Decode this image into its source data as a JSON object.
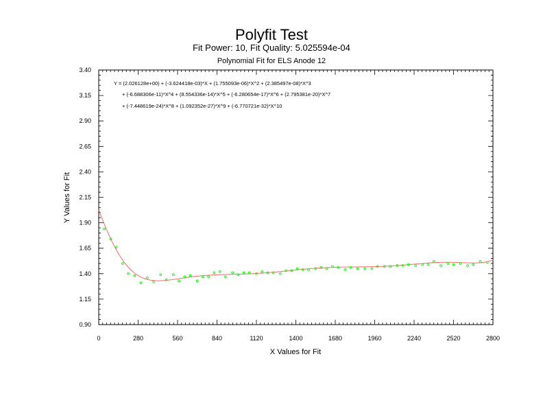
{
  "chart_data": {
    "type": "scatter",
    "title": "Polyfit Test",
    "subtitle": "Fit Power: 10, Fit Quality: 5.025594e-04",
    "subtitle2": "Polynomial Fit for ELS Anode 12",
    "xlabel": "X Values for Fit",
    "ylabel": "Y Values for Fit",
    "xlim": [
      0,
      2800
    ],
    "ylim": [
      0.9,
      3.4
    ],
    "x_ticks": [
      "0",
      "280",
      "560",
      "840",
      "1120",
      "1400",
      "1680",
      "1960",
      "2240",
      "2520",
      "2800"
    ],
    "y_ticks": [
      "0.90",
      "1.15",
      "1.40",
      "1.65",
      "1.90",
      "2.15",
      "2.40",
      "2.65",
      "2.90",
      "3.15",
      "3.40"
    ],
    "equation": [
      "Y = (2.026128e+00) + (-3.624418e-03)*X + (1.755093e-06)*X^2 + (2.385497e-08)*X^3",
      "+ (-6.688306e-11)*X^4 + (8.554336e-14)*X^5 + (-6.280654e-17)*X^6 + (2.795381e-20)*X^7",
      "+ (-7.448619e-24)*X^8 + (1.092352e-27)*X^9 + (-6.770721e-32)*X^10"
    ],
    "series": [
      {
        "kind": "points",
        "color": "#00ff00",
        "x": [
          40,
          85,
          125,
          170,
          210,
          255,
          300,
          345,
          390,
          440,
          480,
          530,
          570,
          610,
          650,
          700,
          740,
          780,
          820,
          860,
          900,
          950,
          990,
          1030,
          1070,
          1120,
          1160,
          1200,
          1240,
          1290,
          1330,
          1370,
          1410,
          1450,
          1490,
          1540,
          1580,
          1620,
          1660,
          1700,
          1750,
          1790,
          1840,
          1890,
          1940,
          1980,
          2030,
          2070,
          2120,
          2160,
          2200,
          2250,
          2300,
          2340,
          2380,
          2430,
          2480,
          2520,
          2570,
          2620,
          2660,
          2710,
          2760
        ],
        "y": [
          1.84,
          1.74,
          1.66,
          1.5,
          1.4,
          1.38,
          1.31,
          1.36,
          1.32,
          1.39,
          1.34,
          1.39,
          1.33,
          1.37,
          1.38,
          1.33,
          1.37,
          1.37,
          1.41,
          1.42,
          1.37,
          1.41,
          1.39,
          1.41,
          1.41,
          1.4,
          1.42,
          1.41,
          1.41,
          1.4,
          1.43,
          1.43,
          1.45,
          1.44,
          1.44,
          1.45,
          1.46,
          1.45,
          1.47,
          1.46,
          1.44,
          1.46,
          1.45,
          1.45,
          1.45,
          1.47,
          1.47,
          1.47,
          1.48,
          1.48,
          1.49,
          1.48,
          1.49,
          1.49,
          1.52,
          1.48,
          1.5,
          1.49,
          1.5,
          1.48,
          1.49,
          1.52,
          1.51
        ]
      },
      {
        "kind": "fit-curve",
        "color": "#ff6666",
        "coefficients": [
          2.026128,
          -0.003624418,
          1.755093e-06,
          2.385497e-08,
          -6.688306e-11,
          8.554336e-14,
          -6.280654e-17,
          2.795381e-20,
          -7.448619e-24,
          1.092352e-27,
          -6.770721e-32
        ]
      }
    ]
  }
}
